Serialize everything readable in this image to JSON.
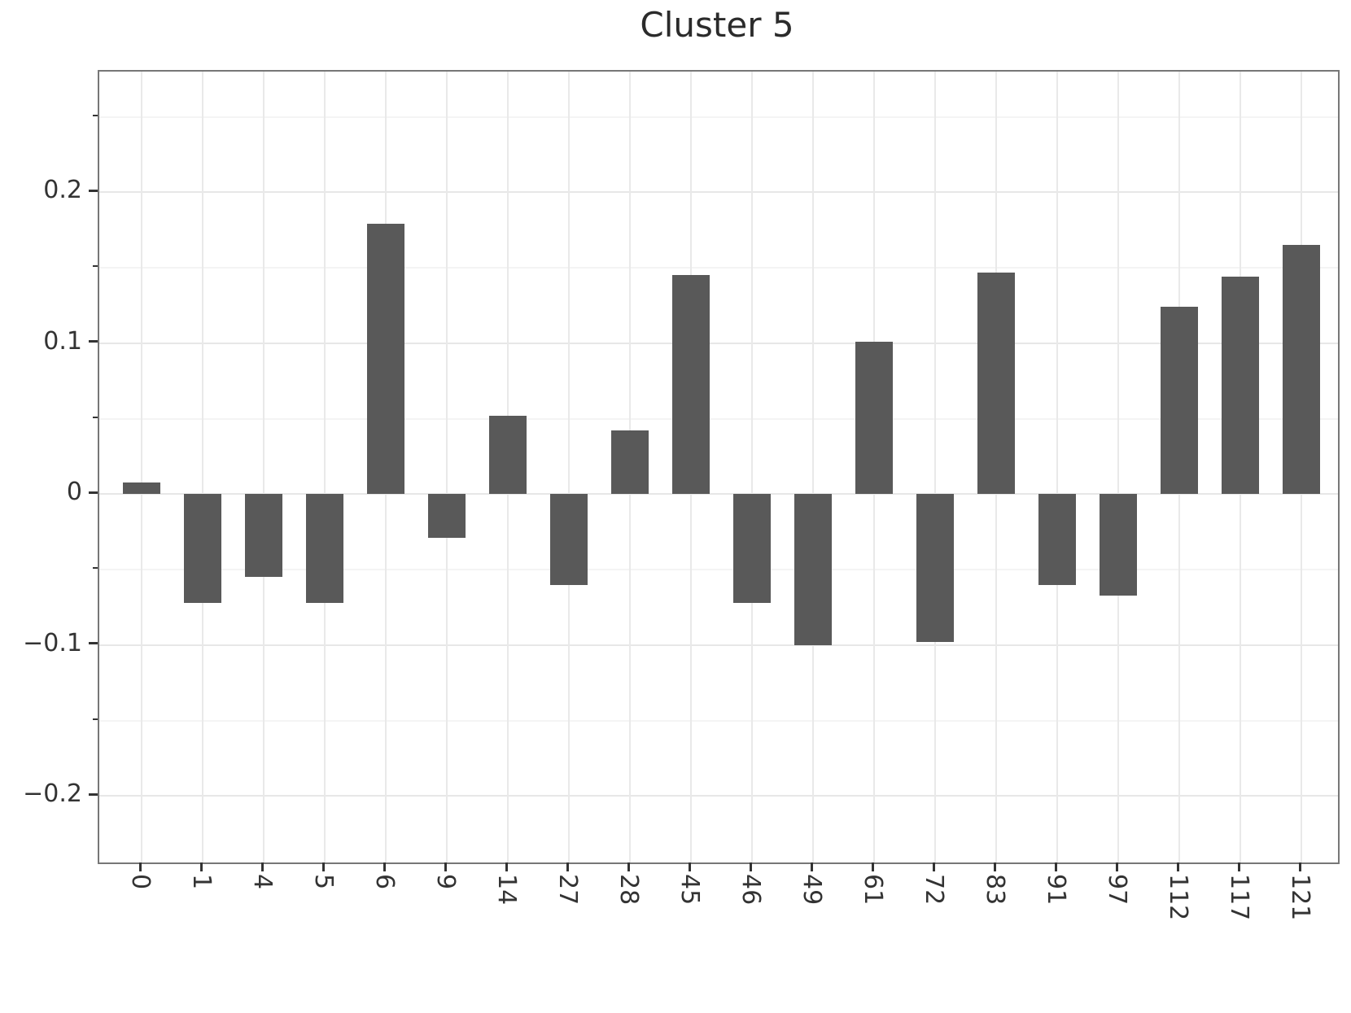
{
  "chart_data": {
    "type": "bar",
    "title": "Cluster 5",
    "categories": [
      "0",
      "1",
      "4",
      "5",
      "6",
      "9",
      "14",
      "27",
      "28",
      "45",
      "46",
      "49",
      "61",
      "72",
      "83",
      "91",
      "97",
      "112",
      "117",
      "121"
    ],
    "values": [
      0.008,
      -0.072,
      -0.055,
      -0.072,
      0.179,
      -0.029,
      0.052,
      -0.06,
      0.042,
      0.145,
      -0.072,
      -0.1,
      0.101,
      -0.098,
      0.147,
      -0.06,
      -0.067,
      0.124,
      0.144,
      0.165
    ],
    "xlabel": "",
    "ylabel": "",
    "ylim": [
      -0.244,
      0.28
    ],
    "yticks": {
      "values": [
        0.2,
        0.1,
        0,
        -0.1,
        -0.2
      ],
      "labels": [
        "0.2",
        "0.1",
        "0",
        "−0.1",
        "−0.2"
      ]
    },
    "minor_yticks": [
      0.25,
      0.15,
      0.05,
      -0.05,
      -0.15
    ],
    "grid": "horizontal major+minor, vertical at each category",
    "legend": "none",
    "colors": {
      "bar": "#595959",
      "major_grid": "#e7e7e7",
      "minor_grid": "#f4f4f4",
      "vertical_grid": "#e9e9e9",
      "spine": "#777777",
      "tick": "#333333",
      "tick_label": "#333333",
      "title": "#2b2b2b",
      "background": "#ffffff"
    }
  }
}
